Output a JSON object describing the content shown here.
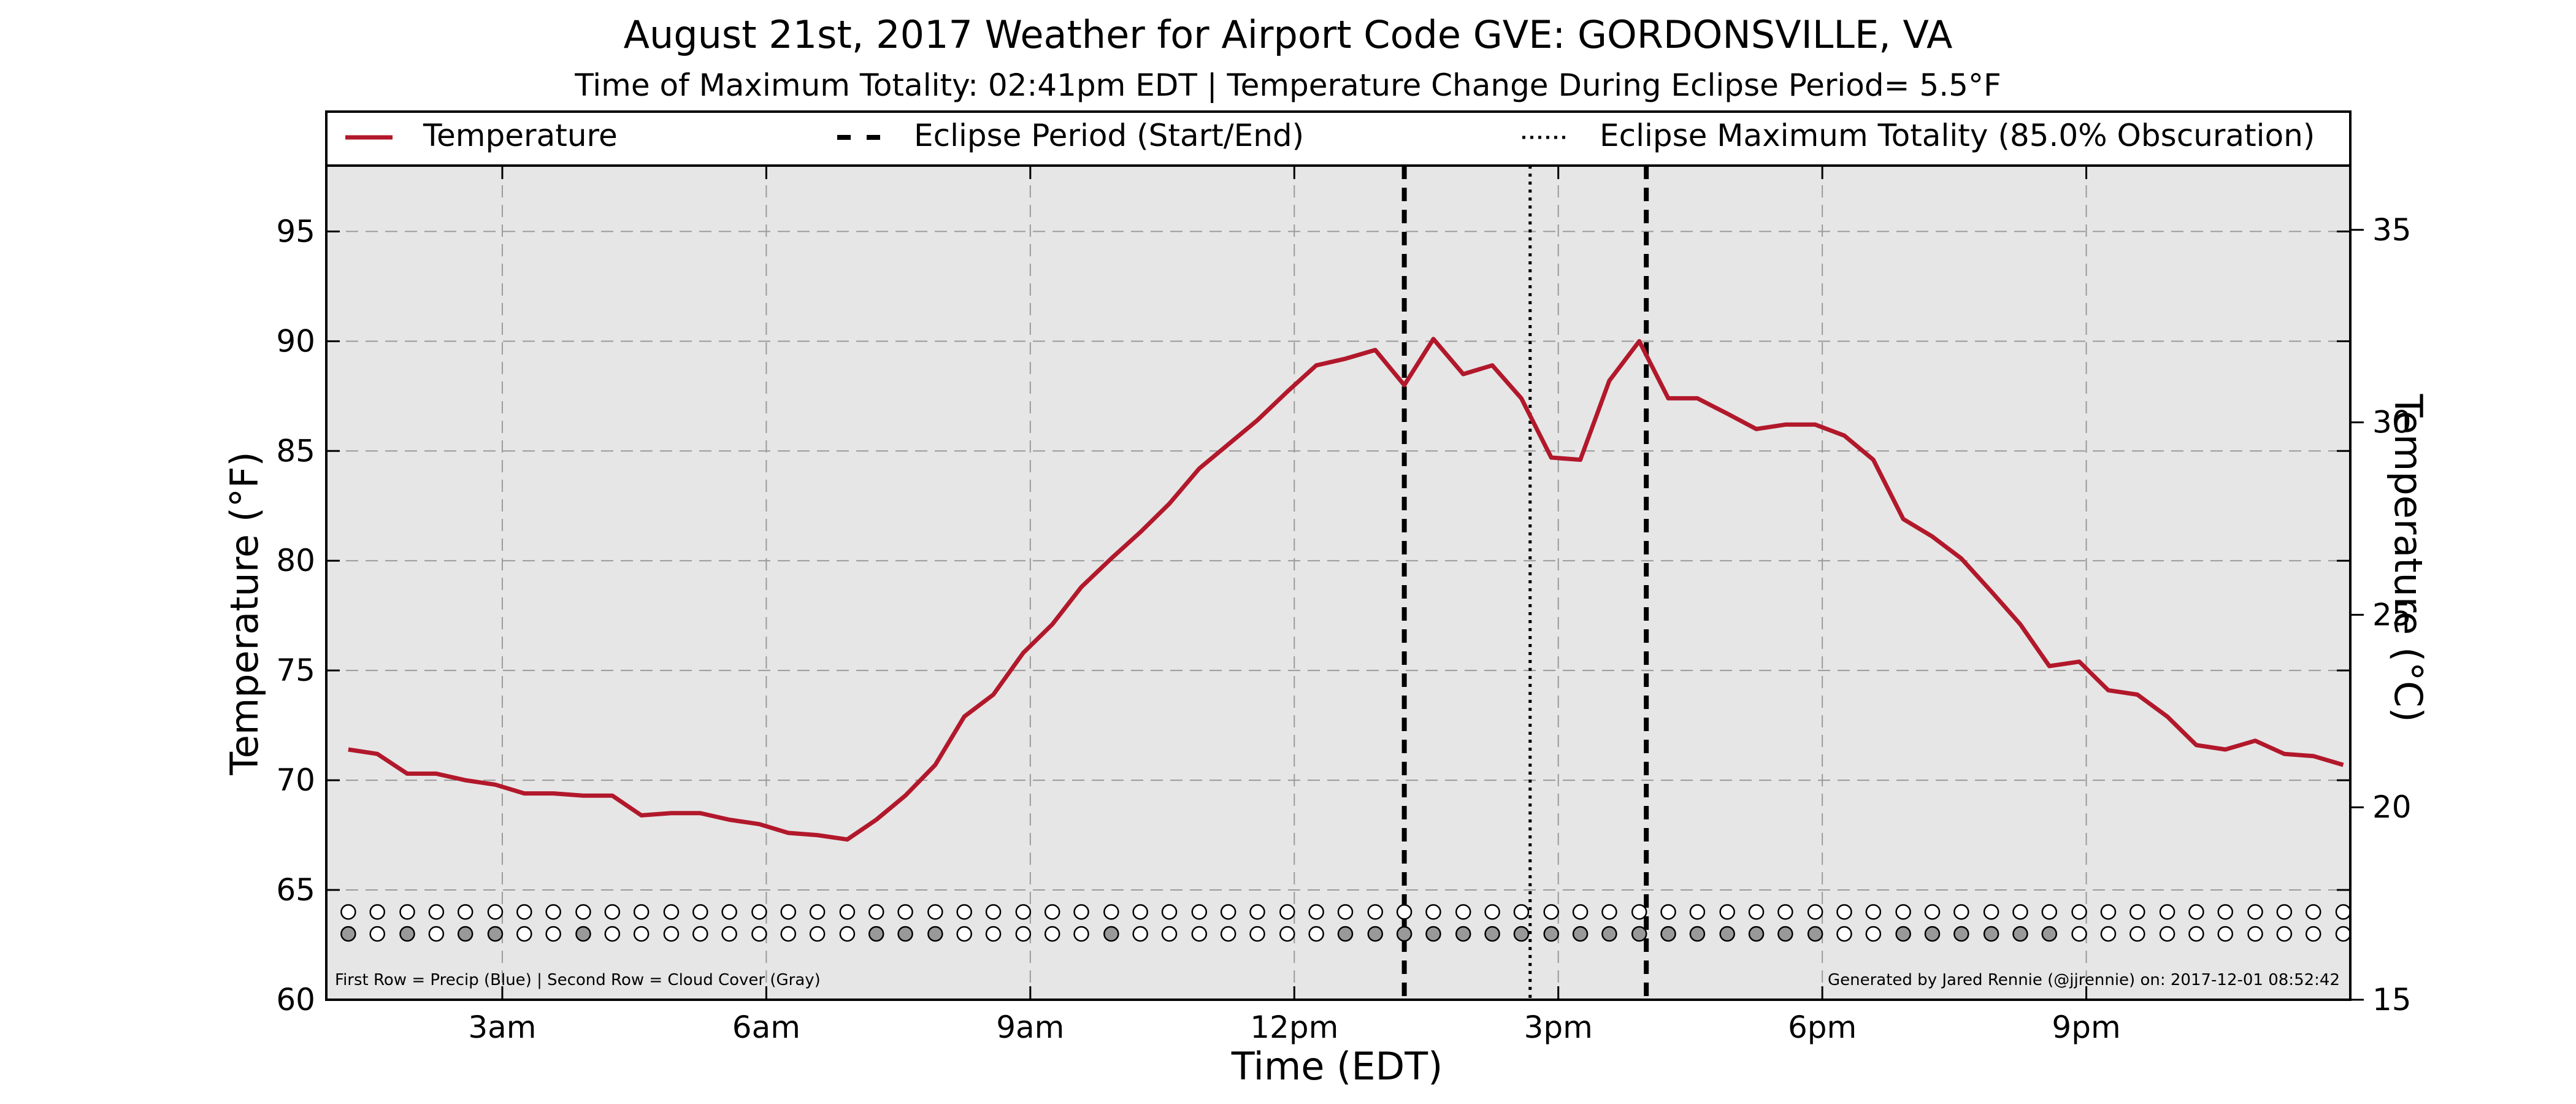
{
  "chart_data": {
    "type": "line",
    "title": "August 21st, 2017 Weather for Airport Code GVE: GORDONSVILLE, VA",
    "subtitle": "Time of Maximum Totality: 02:41pm EDT | Temperature Change During Eclipse Period= 5.5°F",
    "xlabel": "Time (EDT)",
    "ylabel": "Temperature (°F)",
    "ylabel_right": "Temperature (°C)",
    "xlim": [
      1.0,
      24.0
    ],
    "ylim": [
      60,
      98
    ],
    "ylim_right": [
      15,
      36.67
    ],
    "grid": true,
    "legend_position": "top",
    "x_ticks": [
      {
        "x": 3,
        "label": "3am"
      },
      {
        "x": 6,
        "label": "6am"
      },
      {
        "x": 9,
        "label": "9am"
      },
      {
        "x": 12,
        "label": "12pm"
      },
      {
        "x": 15,
        "label": "3pm"
      },
      {
        "x": 18,
        "label": "6pm"
      },
      {
        "x": 21,
        "label": "9pm"
      }
    ],
    "y_ticks": [
      60,
      65,
      70,
      75,
      80,
      85,
      90,
      95
    ],
    "y_ticks_right": [
      15,
      20,
      25,
      30,
      35
    ],
    "legend": {
      "temperature": "Temperature",
      "eclipse_period": "Eclipse Period (Start/End)",
      "max_totality": "Eclipse Maximum Totality (85.0% Obscuration)"
    },
    "series": [
      {
        "name": "Temperature",
        "color": "#b2182b",
        "x": [
          1.25,
          1.58,
          1.92,
          2.25,
          2.58,
          2.92,
          3.25,
          3.58,
          3.92,
          4.25,
          4.58,
          4.92,
          5.25,
          5.58,
          5.92,
          6.25,
          6.58,
          6.92,
          7.25,
          7.58,
          7.92,
          8.25,
          8.58,
          8.92,
          9.25,
          9.58,
          9.92,
          10.25,
          10.58,
          10.92,
          11.25,
          11.58,
          11.92,
          12.25,
          12.58,
          12.92,
          13.25,
          13.58,
          13.92,
          14.25,
          14.58,
          14.92,
          15.25,
          15.58,
          15.92,
          16.25,
          16.58,
          16.92,
          17.25,
          17.58,
          17.92,
          18.25,
          18.58,
          18.92,
          19.25,
          19.58,
          19.92,
          20.25,
          20.58,
          20.92,
          21.25,
          21.58,
          21.92,
          22.25,
          22.58,
          22.92,
          23.25,
          23.58,
          23.92
        ],
        "values": [
          71.4,
          71.2,
          70.3,
          70.3,
          70.0,
          69.8,
          69.4,
          69.4,
          69.3,
          69.3,
          68.4,
          68.5,
          68.5,
          68.2,
          68.0,
          67.6,
          67.5,
          67.3,
          68.2,
          69.3,
          70.7,
          72.9,
          73.9,
          75.8,
          77.1,
          78.8,
          80.1,
          81.3,
          82.6,
          84.2,
          85.3,
          86.4,
          87.7,
          88.9,
          89.2,
          89.6,
          88.0,
          90.1,
          88.5,
          88.9,
          87.4,
          84.7,
          84.6,
          88.2,
          90.0,
          87.4,
          87.4,
          86.7,
          86.0,
          86.2,
          86.2,
          85.7,
          84.6,
          81.9,
          81.1,
          80.1,
          78.6,
          77.1,
          75.2,
          75.4,
          74.1,
          73.9,
          72.9,
          71.6,
          71.4,
          71.8,
          71.2,
          71.1,
          70.7
        ]
      }
    ],
    "eclipse_start": 13.25,
    "eclipse_end": 16.0,
    "max_totality": 14.68,
    "precip_row_value": 64.0,
    "cloud_row_value": 63.0,
    "marker_x": [
      1.25,
      1.58,
      1.92,
      2.25,
      2.58,
      2.92,
      3.25,
      3.58,
      3.92,
      4.25,
      4.58,
      4.92,
      5.25,
      5.58,
      5.92,
      6.25,
      6.58,
      6.92,
      7.25,
      7.58,
      7.92,
      8.25,
      8.58,
      8.92,
      9.25,
      9.58,
      9.92,
      10.25,
      10.58,
      10.92,
      11.25,
      11.58,
      11.92,
      12.25,
      12.58,
      12.92,
      13.25,
      13.58,
      13.92,
      14.25,
      14.58,
      14.92,
      15.25,
      15.58,
      15.92,
      16.25,
      16.58,
      16.92,
      17.25,
      17.58,
      17.92,
      18.25,
      18.58,
      18.92,
      19.25,
      19.58,
      19.92,
      20.25,
      20.58,
      20.92,
      21.25,
      21.58,
      21.92,
      22.25,
      22.58,
      22.92,
      23.25,
      23.58,
      23.92
    ],
    "cloud_cover_filled": [
      1,
      0,
      1,
      0,
      1,
      1,
      0,
      0,
      1,
      0,
      0,
      0,
      0,
      0,
      0,
      0,
      0,
      0,
      1,
      1,
      1,
      0,
      0,
      0,
      0,
      0,
      1,
      0,
      0,
      0,
      0,
      0,
      0,
      0,
      1,
      1,
      1,
      1,
      1,
      1,
      1,
      1,
      1,
      1,
      1,
      1,
      1,
      1,
      1,
      1,
      1,
      0,
      0,
      1,
      1,
      1,
      1,
      1,
      1,
      0,
      0,
      0,
      0,
      0,
      0,
      0,
      0,
      0,
      0
    ],
    "colors": {
      "plot_background": "#e6e6e6",
      "temperature_line": "#b2182b",
      "cloud_cover_fill": "#999999",
      "empty_marker": "#ffffff"
    },
    "footnote_left": "First Row = Precip (Blue) | Second Row = Cloud Cover (Gray)",
    "footnote_right": "Generated by Jared Rennie (@jjrennie) on: 2017-12-01 08:52:42"
  }
}
